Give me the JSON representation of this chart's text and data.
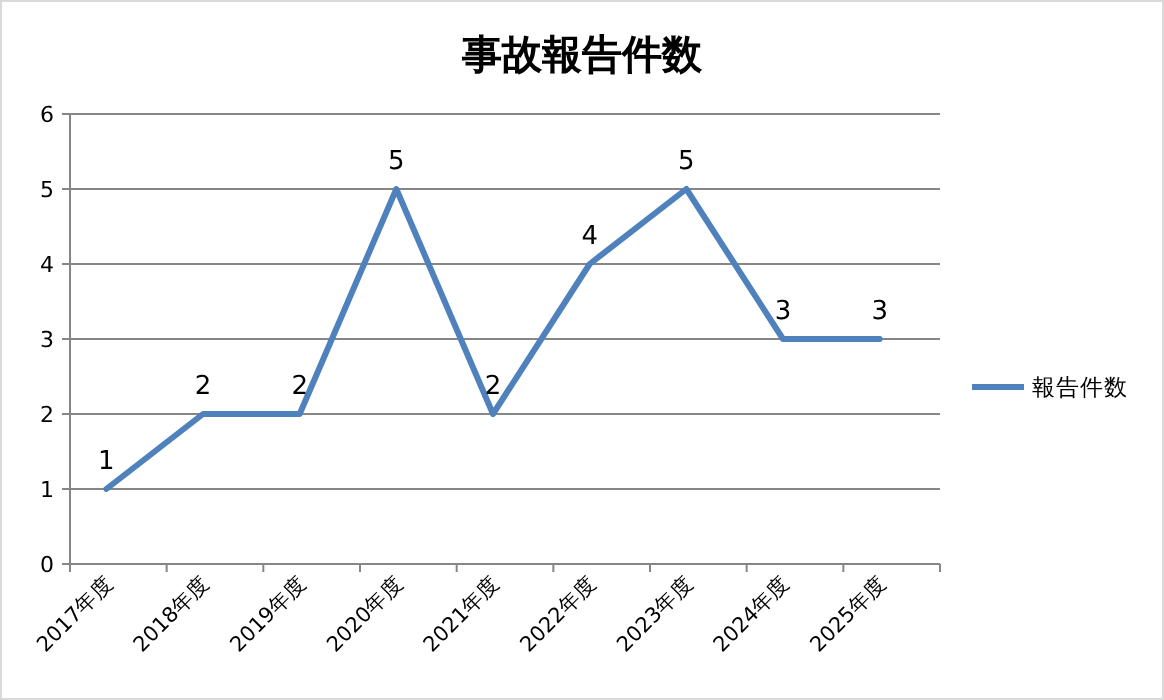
{
  "chart_data": {
    "type": "line",
    "title": "事故報告件数",
    "categories": [
      "2017年度",
      "2018年度",
      "2019年度",
      "2020年度",
      "2021年度",
      "2022年度",
      "2023年度",
      "2024年度",
      "2025年度"
    ],
    "series": [
      {
        "name": "報告件数",
        "color": "#4f81bd",
        "values": [
          1,
          2,
          2,
          5,
          2,
          4,
          5,
          3,
          3
        ]
      }
    ],
    "ylim": [
      0,
      6
    ],
    "yticks": [
      0,
      1,
      2,
      3,
      4,
      5,
      6
    ],
    "grid": "y",
    "legend": "right",
    "data_labels": true,
    "marker": "none",
    "line_style": "solid"
  }
}
